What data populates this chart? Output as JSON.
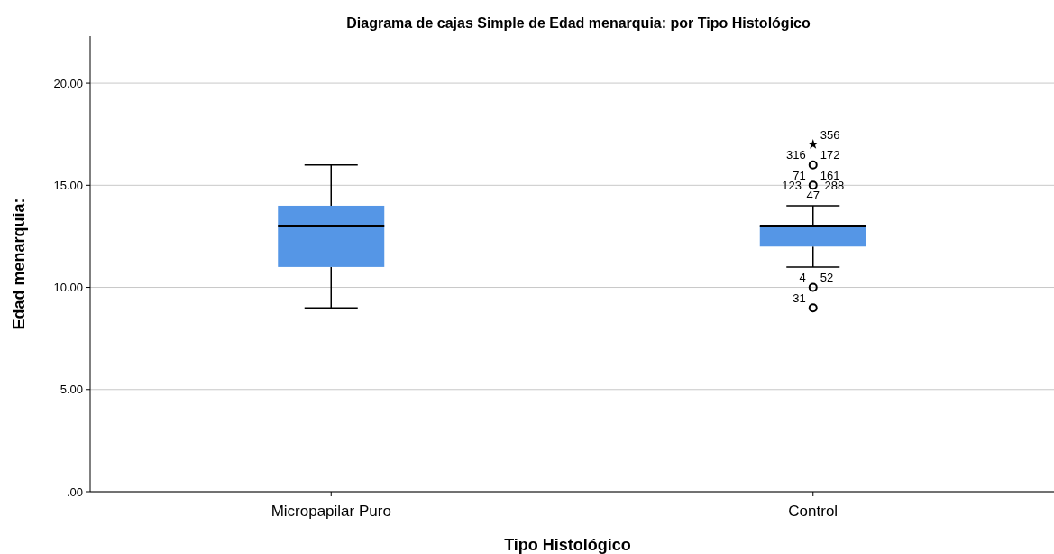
{
  "chart_data": {
    "type": "box",
    "title": "Diagrama de cajas Simple de Edad menarquia: por Tipo Histológico",
    "xlabel": "Tipo Histológico",
    "ylabel": "Edad menarquia:",
    "categories": [
      "Micropapilar Puro",
      "Control"
    ],
    "color": "#5596e6",
    "boxes": [
      {
        "low": 9,
        "q1": 11,
        "median": 13,
        "q3": 14,
        "high": 16
      },
      {
        "low": 11,
        "q1": 12,
        "median": 13,
        "q3": 13,
        "high": 14,
        "outliers": [
          17,
          16,
          15,
          10,
          9
        ]
      }
    ],
    "ylim": [
      0,
      22.3
    ],
    "yticks": [
      {
        "value": 0,
        "label": ".00"
      },
      {
        "value": 5,
        "label": "5.00"
      },
      {
        "value": 10,
        "label": "10.00"
      },
      {
        "value": 15,
        "label": "15.00"
      },
      {
        "value": 20,
        "label": "20.00"
      }
    ],
    "grid": "y",
    "annotations": [
      "356",
      "316",
      "172",
      "71",
      "161",
      "123",
      "288",
      "47",
      "4",
      "52",
      "31"
    ]
  }
}
